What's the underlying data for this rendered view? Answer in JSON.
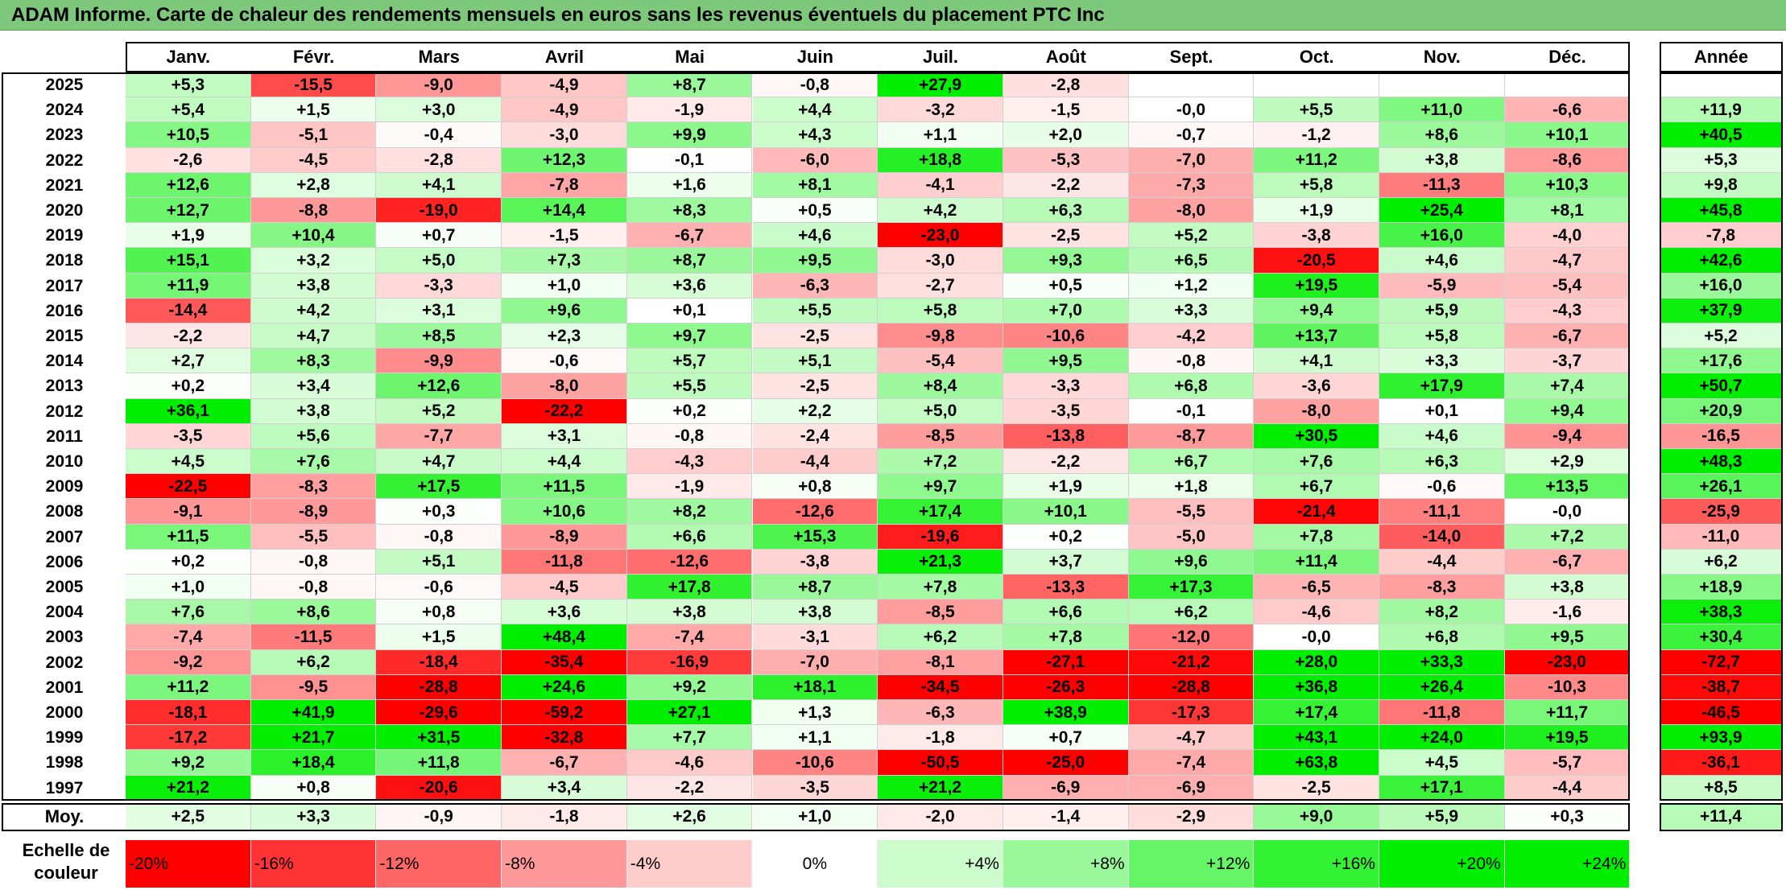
{
  "title": "ADAM Informe. Carte de chaleur des rendements mensuels en euros sans les revenus éventuels du placement PTC Inc",
  "chart_data": {
    "type": "heatmap",
    "title": "ADAM Informe. Carte de chaleur des rendements mensuels en euros sans les revenus éventuels du placement PTC Inc",
    "columns": [
      "Janv.",
      "Févr.",
      "Mars",
      "Avril",
      "Mai",
      "Juin",
      "Juil.",
      "Août",
      "Sept.",
      "Oct.",
      "Nov.",
      "Déc."
    ],
    "year_header": "Année",
    "rows": [
      {
        "year": "2025",
        "values": [
          "+5,3",
          "-15,5",
          "-9,0",
          "-4,9",
          "+8,7",
          "-0,8",
          "+27,9",
          "-2,8",
          "",
          "",
          "",
          ""
        ],
        "annual": ""
      },
      {
        "year": "2024",
        "values": [
          "+5,4",
          "+1,5",
          "+3,0",
          "-4,9",
          "-1,9",
          "+4,4",
          "-3,2",
          "-1,5",
          "-0,0",
          "+5,5",
          "+11,0",
          "-6,6"
        ],
        "annual": "+11,9"
      },
      {
        "year": "2023",
        "values": [
          "+10,5",
          "-5,1",
          "-0,4",
          "-3,0",
          "+9,9",
          "+4,3",
          "+1,1",
          "+2,0",
          "-0,7",
          "-1,2",
          "+8,6",
          "+10,1"
        ],
        "annual": "+40,5"
      },
      {
        "year": "2022",
        "values": [
          "-2,6",
          "-4,5",
          "-2,8",
          "+12,3",
          "-0,1",
          "-6,0",
          "+18,8",
          "-5,3",
          "-7,0",
          "+11,2",
          "+3,8",
          "-8,6"
        ],
        "annual": "+5,3"
      },
      {
        "year": "2021",
        "values": [
          "+12,6",
          "+2,8",
          "+4,1",
          "-7,8",
          "+1,6",
          "+8,1",
          "-4,1",
          "-2,2",
          "-7,3",
          "+5,8",
          "-11,3",
          "+10,3"
        ],
        "annual": "+9,8"
      },
      {
        "year": "2020",
        "values": [
          "+12,7",
          "-8,8",
          "-19,0",
          "+14,4",
          "+8,3",
          "+0,5",
          "+4,2",
          "+6,3",
          "-8,0",
          "+1,9",
          "+25,4",
          "+8,1"
        ],
        "annual": "+45,8"
      },
      {
        "year": "2019",
        "values": [
          "+1,9",
          "+10,4",
          "+0,7",
          "-1,5",
          "-6,7",
          "+4,6",
          "-23,0",
          "-2,5",
          "+5,2",
          "-3,8",
          "+16,0",
          "-4,0"
        ],
        "annual": "-7,8"
      },
      {
        "year": "2018",
        "values": [
          "+15,1",
          "+3,2",
          "+5,0",
          "+7,3",
          "+8,7",
          "+9,5",
          "-3,0",
          "+9,3",
          "+6,5",
          "-20,5",
          "+4,6",
          "-4,7"
        ],
        "annual": "+42,6"
      },
      {
        "year": "2017",
        "values": [
          "+11,9",
          "+3,8",
          "-3,3",
          "+1,0",
          "+3,6",
          "-6,3",
          "-2,7",
          "+0,5",
          "+1,2",
          "+19,5",
          "-5,9",
          "-5,4"
        ],
        "annual": "+16,0"
      },
      {
        "year": "2016",
        "values": [
          "-14,4",
          "+4,2",
          "+3,1",
          "+9,6",
          "+0,1",
          "+5,5",
          "+5,8",
          "+7,0",
          "+3,3",
          "+9,4",
          "+5,9",
          "-4,3"
        ],
        "annual": "+37,9"
      },
      {
        "year": "2015",
        "values": [
          "-2,2",
          "+4,7",
          "+8,5",
          "+2,3",
          "+9,7",
          "-2,5",
          "-9,8",
          "-10,6",
          "-4,2",
          "+13,7",
          "+5,8",
          "-6,7"
        ],
        "annual": "+5,2"
      },
      {
        "year": "2014",
        "values": [
          "+2,7",
          "+8,3",
          "-9,9",
          "-0,6",
          "+5,7",
          "+5,1",
          "-5,4",
          "+9,5",
          "-0,8",
          "+4,1",
          "+3,3",
          "-3,7"
        ],
        "annual": "+17,6"
      },
      {
        "year": "2013",
        "values": [
          "+0,2",
          "+3,4",
          "+12,6",
          "-8,0",
          "+5,5",
          "-2,5",
          "+8,4",
          "-3,3",
          "+6,8",
          "-3,6",
          "+17,9",
          "+7,4"
        ],
        "annual": "+50,7"
      },
      {
        "year": "2012",
        "values": [
          "+36,1",
          "+3,8",
          "+5,2",
          "-22,2",
          "+0,2",
          "+2,2",
          "+5,0",
          "-3,5",
          "-0,1",
          "-8,0",
          "+0,1",
          "+9,4"
        ],
        "annual": "+20,9"
      },
      {
        "year": "2011",
        "values": [
          "-3,5",
          "+5,6",
          "-7,7",
          "+3,1",
          "-0,8",
          "-2,4",
          "-8,5",
          "-13,8",
          "-8,7",
          "+30,5",
          "+4,6",
          "-9,4"
        ],
        "annual": "-16,5"
      },
      {
        "year": "2010",
        "values": [
          "+4,5",
          "+7,6",
          "+4,7",
          "+4,4",
          "-4,3",
          "-4,4",
          "+7,2",
          "-2,2",
          "+6,7",
          "+7,6",
          "+6,3",
          "+2,9"
        ],
        "annual": "+48,3"
      },
      {
        "year": "2009",
        "values": [
          "-22,5",
          "-8,3",
          "+17,5",
          "+11,5",
          "-1,9",
          "+0,8",
          "+9,7",
          "+1,9",
          "+1,8",
          "+6,7",
          "-0,6",
          "+13,5"
        ],
        "annual": "+26,1"
      },
      {
        "year": "2008",
        "values": [
          "-9,1",
          "-8,9",
          "+0,3",
          "+10,6",
          "+8,2",
          "-12,6",
          "+17,4",
          "+10,1",
          "-5,5",
          "-21,4",
          "-11,1",
          "-0,0"
        ],
        "annual": "-25,9"
      },
      {
        "year": "2007",
        "values": [
          "+11,5",
          "-5,5",
          "-0,8",
          "-8,9",
          "+6,6",
          "+15,3",
          "-19,6",
          "+0,2",
          "-5,0",
          "+7,8",
          "-14,0",
          "+7,2"
        ],
        "annual": "-11,0"
      },
      {
        "year": "2006",
        "values": [
          "+0,2",
          "-0,8",
          "+5,1",
          "-11,8",
          "-12,6",
          "-3,8",
          "+21,3",
          "+3,7",
          "+9,6",
          "+11,4",
          "-4,4",
          "-6,7"
        ],
        "annual": "+6,2"
      },
      {
        "year": "2005",
        "values": [
          "+1,0",
          "-0,8",
          "-0,6",
          "-4,5",
          "+17,8",
          "+8,7",
          "+7,8",
          "-13,3",
          "+17,3",
          "-6,5",
          "-8,3",
          "+3,8"
        ],
        "annual": "+18,9"
      },
      {
        "year": "2004",
        "values": [
          "+7,6",
          "+8,6",
          "+0,8",
          "+3,6",
          "+3,8",
          "+3,8",
          "-8,5",
          "+6,6",
          "+6,2",
          "-4,6",
          "+8,2",
          "-1,6"
        ],
        "annual": "+38,3"
      },
      {
        "year": "2003",
        "values": [
          "-7,4",
          "-11,5",
          "+1,5",
          "+48,4",
          "-7,4",
          "-3,1",
          "+6,2",
          "+7,8",
          "-12,0",
          "-0,0",
          "+6,8",
          "+9,5"
        ],
        "annual": "+30,4"
      },
      {
        "year": "2002",
        "values": [
          "-9,2",
          "+6,2",
          "-18,4",
          "-35,4",
          "-16,9",
          "-7,0",
          "-8,1",
          "-27,1",
          "-21,2",
          "+28,0",
          "+33,3",
          "-23,0"
        ],
        "annual": "-72,7"
      },
      {
        "year": "2001",
        "values": [
          "+11,2",
          "-9,5",
          "-28,8",
          "+24,6",
          "+9,2",
          "+18,1",
          "-34,5",
          "-26,3",
          "-28,8",
          "+36,8",
          "+26,4",
          "-10,3"
        ],
        "annual": "-38,7"
      },
      {
        "year": "2000",
        "values": [
          "-18,1",
          "+41,9",
          "-29,6",
          "-59,2",
          "+27,1",
          "+1,3",
          "-6,3",
          "+38,9",
          "-17,3",
          "+17,4",
          "-11,8",
          "+11,7"
        ],
        "annual": "-46,5"
      },
      {
        "year": "1999",
        "values": [
          "-17,2",
          "+21,7",
          "+31,5",
          "-32,8",
          "+7,7",
          "+1,1",
          "-1,8",
          "+0,7",
          "-4,7",
          "+43,1",
          "+24,0",
          "+19,5"
        ],
        "annual": "+93,9"
      },
      {
        "year": "1998",
        "values": [
          "+9,2",
          "+18,4",
          "+11,8",
          "-6,7",
          "-4,6",
          "-10,6",
          "-50,5",
          "-25,0",
          "-7,4",
          "+63,8",
          "+4,5",
          "-5,7"
        ],
        "annual": "-36,1"
      },
      {
        "year": "1997",
        "values": [
          "+21,2",
          "+0,8",
          "-20,6",
          "+3,4",
          "-2,2",
          "-3,5",
          "+21,2",
          "-6,9",
          "-6,9",
          "-2,5",
          "+17,1",
          "-4,4"
        ],
        "annual": "+8,5"
      }
    ],
    "average_label": "Moy.",
    "averages": [
      "+2,5",
      "+3,3",
      "-0,9",
      "-1,8",
      "+2,6",
      "+1,0",
      "-2,0",
      "-1,4",
      "-2,9",
      "+9,0",
      "+5,9",
      "+0,3"
    ],
    "average_annual": "+11,4",
    "scale_label": "Echelle de couleur",
    "scale": [
      {
        "label": "-20%",
        "value": -20
      },
      {
        "label": "-16%",
        "value": -16
      },
      {
        "label": "-12%",
        "value": -12
      },
      {
        "label": "-8%",
        "value": -8
      },
      {
        "label": "-4%",
        "value": -4
      },
      {
        "label": "0%",
        "value": 0
      },
      {
        "label": "+4%",
        "value": 4
      },
      {
        "label": "+8%",
        "value": 8
      },
      {
        "label": "+12%",
        "value": 12
      },
      {
        "label": "+16%",
        "value": 16
      },
      {
        "label": "+20%",
        "value": 20
      },
      {
        "label": "+24%",
        "value": 24
      }
    ],
    "colors": {
      "negative_max": "#ff0000",
      "neutral": "#ffffff",
      "positive_max": "#00ee00",
      "title_bar": "#7dc87a"
    }
  }
}
